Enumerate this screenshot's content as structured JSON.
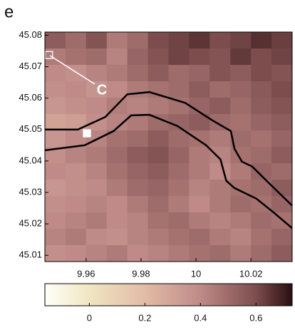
{
  "chart_data": {
    "type": "heatmap",
    "panel_label": "e",
    "annotation": "C",
    "xlim": [
      9.945,
      10.035
    ],
    "ylim": [
      45.008,
      45.081
    ],
    "xticks": [
      9.96,
      9.98,
      10,
      10.02
    ],
    "yticks": [
      45.01,
      45.02,
      45.03,
      45.04,
      45.05,
      45.06,
      45.07,
      45.08
    ],
    "z": [
      [
        0.55,
        0.5,
        0.58,
        0.45,
        0.5,
        0.6,
        0.62,
        0.65,
        0.6,
        0.62,
        0.66,
        0.63
      ],
      [
        0.45,
        0.48,
        0.5,
        0.42,
        0.52,
        0.58,
        0.62,
        0.6,
        0.58,
        0.64,
        0.6,
        0.62
      ],
      [
        0.4,
        0.38,
        0.42,
        0.45,
        0.5,
        0.55,
        0.5,
        0.52,
        0.58,
        0.55,
        0.6,
        0.58
      ],
      [
        0.38,
        0.4,
        0.36,
        0.4,
        0.45,
        0.48,
        0.5,
        0.55,
        0.5,
        0.52,
        0.56,
        0.6
      ],
      [
        0.35,
        0.38,
        0.4,
        0.44,
        0.42,
        0.45,
        0.48,
        0.52,
        0.55,
        0.5,
        0.55,
        0.58
      ],
      [
        0.3,
        0.32,
        0.38,
        0.42,
        0.45,
        0.5,
        0.52,
        0.55,
        0.5,
        0.48,
        0.52,
        0.55
      ],
      [
        0.35,
        0.4,
        0.42,
        0.48,
        0.5,
        0.55,
        0.5,
        0.48,
        0.45,
        0.5,
        0.48,
        0.52
      ],
      [
        0.38,
        0.42,
        0.45,
        0.5,
        0.55,
        0.58,
        0.52,
        0.45,
        0.42,
        0.48,
        0.5,
        0.55
      ],
      [
        0.4,
        0.38,
        0.42,
        0.48,
        0.52,
        0.55,
        0.5,
        0.45,
        0.4,
        0.45,
        0.52,
        0.5
      ],
      [
        0.35,
        0.38,
        0.4,
        0.45,
        0.5,
        0.52,
        0.48,
        0.42,
        0.45,
        0.48,
        0.5,
        0.55
      ],
      [
        0.38,
        0.4,
        0.42,
        0.4,
        0.45,
        0.5,
        0.45,
        0.4,
        0.45,
        0.5,
        0.48,
        0.52
      ],
      [
        0.4,
        0.42,
        0.45,
        0.4,
        0.42,
        0.48,
        0.5,
        0.45,
        0.42,
        0.45,
        0.5,
        0.48
      ],
      [
        0.42,
        0.45,
        0.4,
        0.38,
        0.42,
        0.45,
        0.48,
        0.5,
        0.45,
        0.42,
        0.48,
        0.52
      ],
      [
        0.38,
        0.4,
        0.42,
        0.45,
        0.4,
        0.42,
        0.45,
        0.48,
        0.5,
        0.45,
        0.5,
        0.55
      ]
    ],
    "colormap": [
      {
        "value": -0.16,
        "color": "#fffff8"
      },
      {
        "value": 0.0,
        "color": "#efe6c2"
      },
      {
        "value": 0.2,
        "color": "#e2bba6"
      },
      {
        "value": 0.4,
        "color": "#bf8a88"
      },
      {
        "value": 0.6,
        "color": "#7d4d4d"
      },
      {
        "value": 0.73,
        "color": "#2a0f10"
      }
    ],
    "colorbar": {
      "lim": [
        -0.16,
        0.73
      ],
      "ticks": [
        0,
        0.2,
        0.4,
        0.6
      ]
    },
    "series": [
      {
        "color": "#000000",
        "x": [
          9.945,
          9.957,
          9.967,
          9.975,
          9.983,
          9.996,
          10.006,
          10.0127,
          10.014,
          10.0167,
          10.0205,
          10.0257,
          10.035
        ],
        "y": [
          45.05,
          45.05,
          45.054,
          45.0612,
          45.0619,
          45.0585,
          45.0529,
          45.0495,
          45.0439,
          45.0398,
          45.0382,
          45.0337,
          45.0258
        ]
      },
      {
        "color": "#000000",
        "x": [
          9.945,
          9.9595,
          9.97,
          9.9764,
          9.983,
          9.9933,
          10.0037,
          10.0089,
          10.011,
          10.014,
          10.022,
          10.0284,
          10.035
        ],
        "y": [
          45.0434,
          45.045,
          45.0495,
          45.0545,
          45.0547,
          45.0511,
          45.045,
          45.0405,
          45.0337,
          45.0314,
          45.028,
          45.0235,
          45.0186
        ]
      }
    ],
    "markers": [
      {
        "x": 9.9465,
        "y": 45.0737,
        "color": "none",
        "stroke": "#ffffff"
      },
      {
        "x": 9.9603,
        "y": 45.0488,
        "color": "#ffffff",
        "stroke": "#ffffff"
      }
    ]
  }
}
